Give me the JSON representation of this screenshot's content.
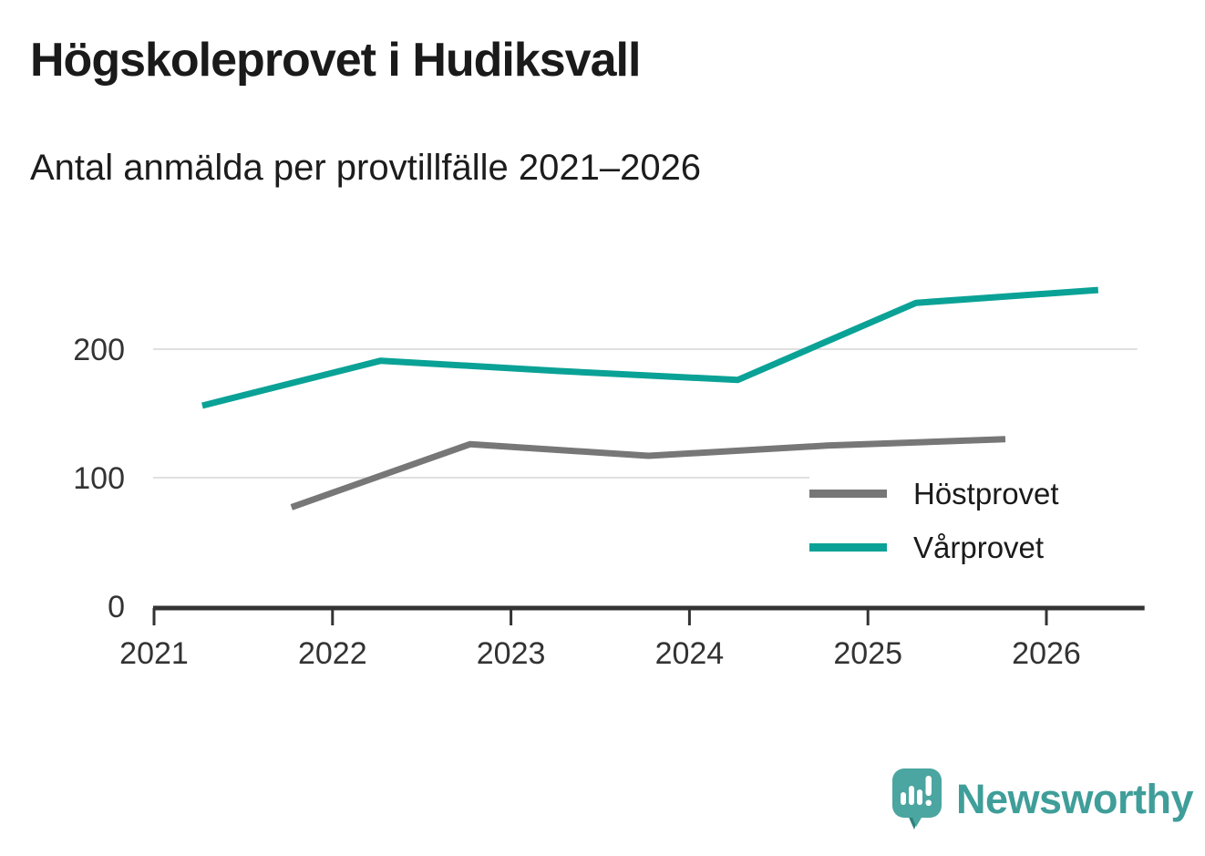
{
  "chart_data": {
    "type": "line",
    "title": "Högskoleprovet i Hudiksvall",
    "subtitle": "Antal anmälda per provtillfälle 2021–2026",
    "xlabel": "",
    "ylabel": "",
    "x_ticks": [
      2021,
      2022,
      2023,
      2024,
      2025,
      2026
    ],
    "y_ticks": [
      0,
      100,
      200
    ],
    "y_gridlines": [
      100,
      200
    ],
    "xlim": [
      2021,
      2026.55
    ],
    "ylim": [
      0,
      280
    ],
    "grid": "horizontal",
    "legend_position": "middle-right",
    "series": [
      {
        "name": "Höstprovet",
        "color": "#777777",
        "x": [
          2021.77,
          2022.77,
          2023.77,
          2024.77,
          2025.77
        ],
        "values": [
          77,
          126,
          117,
          125,
          130
        ]
      },
      {
        "name": "Vårprovet",
        "color": "#0aa296",
        "x": [
          2021.27,
          2022.27,
          2023.27,
          2024.27,
          2025.27,
          2026.29
        ],
        "values": [
          156,
          191,
          183,
          176,
          236,
          246
        ]
      }
    ]
  },
  "colors": {
    "axis": "#333333",
    "grid": "#e0e0e0",
    "tick_text": "#333333",
    "title_text": "#1a1a1a"
  },
  "brand": {
    "wordmark": "Newsworthy",
    "wordmark_color": "#3f9e99",
    "bubble_color": "#4ba5a0",
    "bubble_shade_color": "#2e807b",
    "bars_color": "#ffffff"
  }
}
